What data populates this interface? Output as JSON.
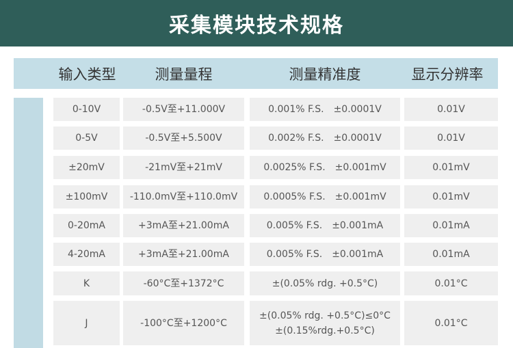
{
  "title": "采集模块技术规格",
  "headers": [
    "输入类型",
    "测量量程",
    "测量精准度",
    "显示分辨率"
  ],
  "rows": [
    [
      "0-10V",
      "-0.5V至+11.000V",
      "0.001% F.S.　±0.0001V",
      "0.01V"
    ],
    [
      "0-5V",
      "-0.5V至+5.500V",
      "0.002% F.S.　±0.0001V",
      "0.01V"
    ],
    [
      "±20mV",
      "-21mV至+21mV",
      "0.0025% F.S.　±0.001mV",
      "0.01mV"
    ],
    [
      "±100mV",
      "-110.0mV至+110.0mV",
      "0.0005% F.S.　±0.001mV",
      "0.01mV"
    ],
    [
      "0-20mA",
      "+3mA至+21.00mA",
      "0.005% F.S.　±0.001mA",
      "0.01mA"
    ],
    [
      "4-20mA",
      "+3mA至+21.00mA",
      "0.005% F.S.　±0.001mA",
      "0.01mA"
    ],
    [
      "K",
      "-60°C至+1372°C",
      "±(0.05% rdg. +0.5°C)",
      "0.01°C"
    ],
    [
      "J",
      "-100°C至+1200°C",
      "±(0.05% rdg. +0.5°C)≤0°C\n±(0.15%rdg.+0.5°C)",
      "0.01°C"
    ]
  ]
}
